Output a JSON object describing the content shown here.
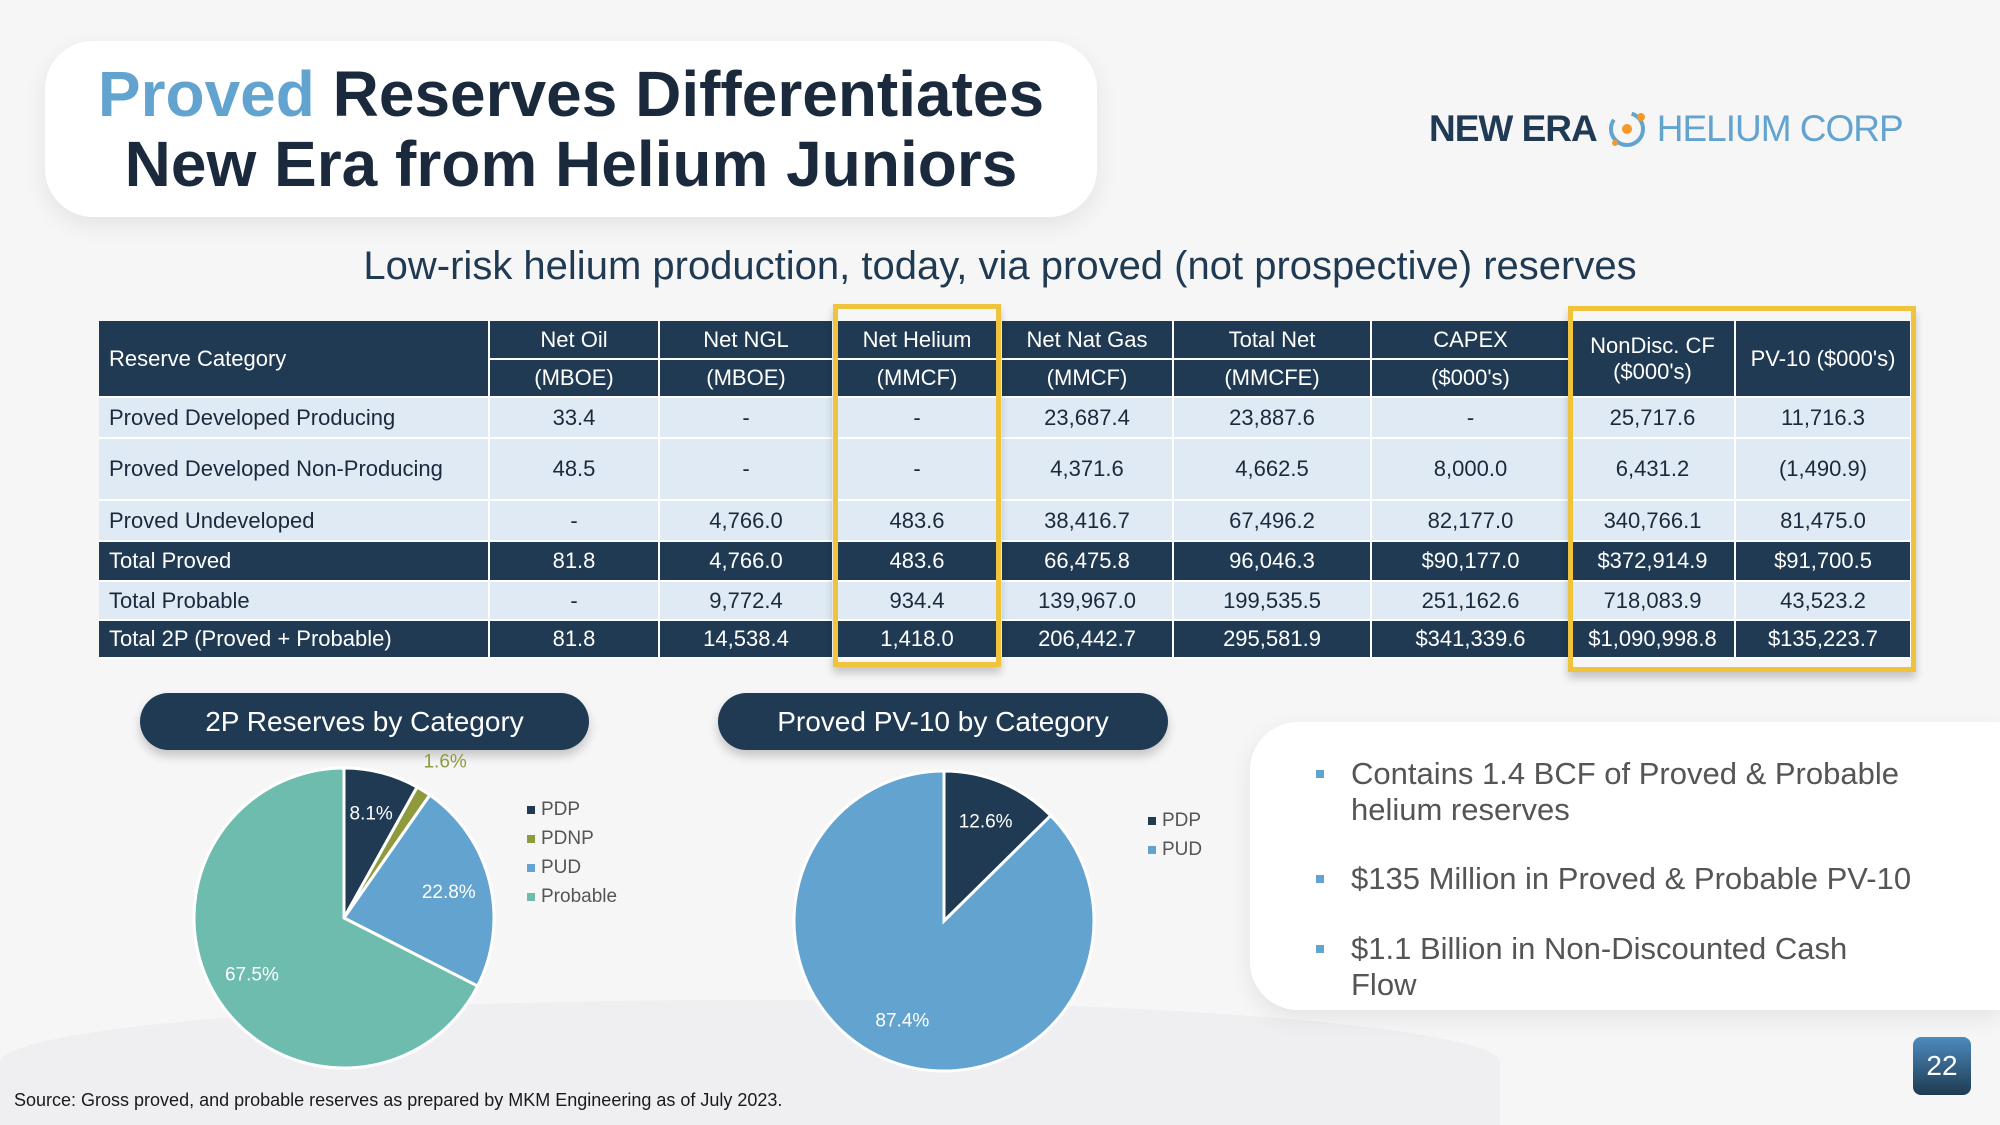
{
  "title": {
    "highlight": "Proved",
    "line1_rest": " Reserves Differentiates",
    "line2": "New Era from Helium Juniors"
  },
  "logo": {
    "part1": "NEW ERA",
    "part2": "HELIUM CORP"
  },
  "subtitle": "Low-risk helium production, today, via proved (not prospective) reserves",
  "table": {
    "headers": [
      [
        "Reserve Category",
        ""
      ],
      [
        "Net Oil",
        "(MBOE)"
      ],
      [
        "Net NGL",
        "(MBOE)"
      ],
      [
        "Net Helium",
        "(MMCF)"
      ],
      [
        "Net Nat Gas",
        "(MMCF)"
      ],
      [
        "Total Net",
        "(MMCFE)"
      ],
      [
        "CAPEX",
        "($000's)"
      ],
      [
        "NonDisc. CF",
        "($000's)"
      ],
      [
        "PV-10 ($000's)",
        ""
      ]
    ],
    "rows": [
      {
        "total": false,
        "cells": [
          "Proved Developed Producing",
          "33.4",
          "-",
          "-",
          "23,687.4",
          "23,887.6",
          "-",
          "25,717.6",
          "11,716.3"
        ]
      },
      {
        "total": false,
        "cells": [
          "Proved Developed Non-Producing",
          "48.5",
          "-",
          "-",
          "4,371.6",
          "4,662.5",
          "8,000.0",
          "6,431.2",
          "(1,490.9)"
        ]
      },
      {
        "total": false,
        "cells": [
          "Proved Undeveloped",
          "-",
          "4,766.0",
          "483.6",
          "38,416.7",
          "67,496.2",
          "82,177.0",
          "340,766.1",
          "81,475.0"
        ]
      },
      {
        "total": true,
        "cells": [
          "Total Proved",
          "81.8",
          "4,766.0",
          "483.6",
          "66,475.8",
          "96,046.3",
          "$90,177.0",
          "$372,914.9",
          "$91,700.5"
        ]
      },
      {
        "total": false,
        "cells": [
          "Total Probable",
          "-",
          "9,772.4",
          "934.4",
          "139,967.0",
          "199,535.5",
          "251,162.6",
          "718,083.9",
          "43,523.2"
        ]
      },
      {
        "total": true,
        "cells": [
          "Total 2P (Proved + Probable)",
          "81.8",
          "14,538.4",
          "1,418.0",
          "206,442.7",
          "295,581.9",
          "$341,339.6",
          "$1,090,998.8",
          "$135,223.7"
        ]
      }
    ]
  },
  "chart_data": [
    {
      "type": "pie",
      "title": "2P Reserves by Category",
      "categories": [
        "PDP",
        "PDNP",
        "PUD",
        "Probable"
      ],
      "values": [
        8.1,
        1.6,
        22.8,
        67.5
      ],
      "labels": [
        "8.1%",
        "1.6%",
        "22.8%",
        "67.5%"
      ],
      "colors": [
        "#1f3a52",
        "#8f9a3c",
        "#62a4cf",
        "#6dbcad"
      ],
      "legend": "right"
    },
    {
      "type": "pie",
      "title": "Proved PV-10 by Category",
      "categories": [
        "PDP",
        "PUD"
      ],
      "values": [
        12.6,
        87.4
      ],
      "labels": [
        "12.6%",
        "87.4%"
      ],
      "colors": [
        "#1f3a52",
        "#62a4cf"
      ],
      "legend": "right"
    }
  ],
  "bullets": [
    "Contains 1.4 BCF of Proved & Probable helium reserves",
    "$135 Million in Proved & Probable PV-10",
    "$1.1 Billion in Non-Discounted Cash Flow"
  ],
  "page_number": "22",
  "source": "Source: Gross proved, and probable reserves as prepared by MKM Engineering as of July 2023."
}
